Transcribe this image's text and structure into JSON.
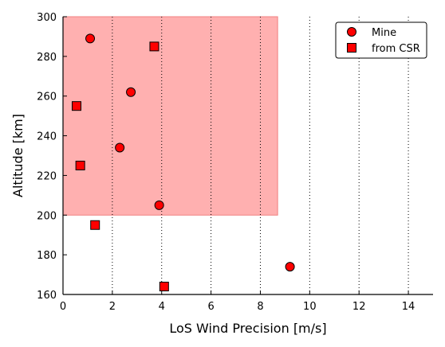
{
  "chart_data": {
    "type": "scatter",
    "title": "",
    "xlabel": "LoS Wind Precision [m/s]",
    "ylabel": "Altitude [km]",
    "xlim": [
      0,
      15
    ],
    "ylim": [
      160,
      300
    ],
    "xticks": [
      "0",
      "2",
      "4",
      "6",
      "8",
      "10",
      "12",
      "14"
    ],
    "yticks": [
      "160",
      "180",
      "200",
      "220",
      "240",
      "260",
      "280",
      "300"
    ],
    "grid": "vertical dotted lines at x = 2, 4, 6, 8, 10, 12, 14",
    "legend_position": "top-right",
    "shaded_region": {
      "x": [
        0,
        8.7
      ],
      "y": [
        200,
        300
      ],
      "color": "#ffb0b0",
      "edge_color": "#f08080"
    },
    "series": [
      {
        "name": "Mine",
        "marker": "circle",
        "color": "#ff0000",
        "points": [
          {
            "x": 1.1,
            "y": 289
          },
          {
            "x": 2.75,
            "y": 262
          },
          {
            "x": 2.3,
            "y": 234
          },
          {
            "x": 3.9,
            "y": 205
          },
          {
            "x": 9.2,
            "y": 174
          }
        ]
      },
      {
        "name": "from CSR",
        "marker": "square",
        "color": "#ff0000",
        "points": [
          {
            "x": 3.7,
            "y": 285
          },
          {
            "x": 0.55,
            "y": 255
          },
          {
            "x": 0.7,
            "y": 225
          },
          {
            "x": 1.3,
            "y": 195
          },
          {
            "x": 4.1,
            "y": 164
          }
        ]
      }
    ]
  }
}
